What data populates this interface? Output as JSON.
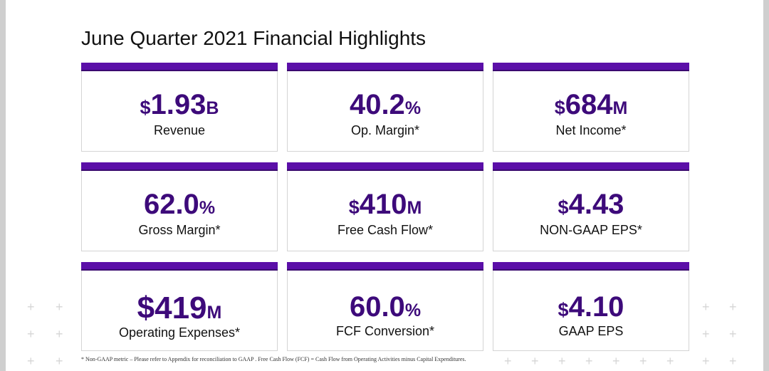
{
  "title": "June Quarter 2021 Financial Highlights",
  "accent_color": "#5b0fa8",
  "value_color": "#3d0a7a",
  "cards": [
    {
      "prefix": "$",
      "value": "1.93",
      "unit": "B",
      "label": "Revenue"
    },
    {
      "prefix": "",
      "value": "40.2",
      "unit": "%",
      "label": "Op. Margin*"
    },
    {
      "prefix": "$",
      "value": "684",
      "unit": "M",
      "label": "Net Income*"
    },
    {
      "prefix": "",
      "value": "62.0",
      "unit": "%",
      "label": "Gross Margin*"
    },
    {
      "prefix": "$",
      "value": "410",
      "unit": "M",
      "label": "Free Cash Flow*"
    },
    {
      "prefix": "$",
      "value": "4.43",
      "unit": "",
      "label": "NON-GAAP EPS*"
    },
    {
      "prefix": "$",
      "value": "419",
      "unit": "M",
      "label": "Operating Expenses*"
    },
    {
      "prefix": "",
      "value": "60.0",
      "unit": "%",
      "label": "FCF Conversion*"
    },
    {
      "prefix": "$",
      "value": "4.10",
      "unit": "",
      "label": "GAAP EPS"
    }
  ],
  "footnote": "* Non-GAAP metric – Please refer to Appendix for reconciliation to GAAP . Free Cash Flow (FCF) = Cash Flow from Operating Activities minus Capital Expenditures."
}
